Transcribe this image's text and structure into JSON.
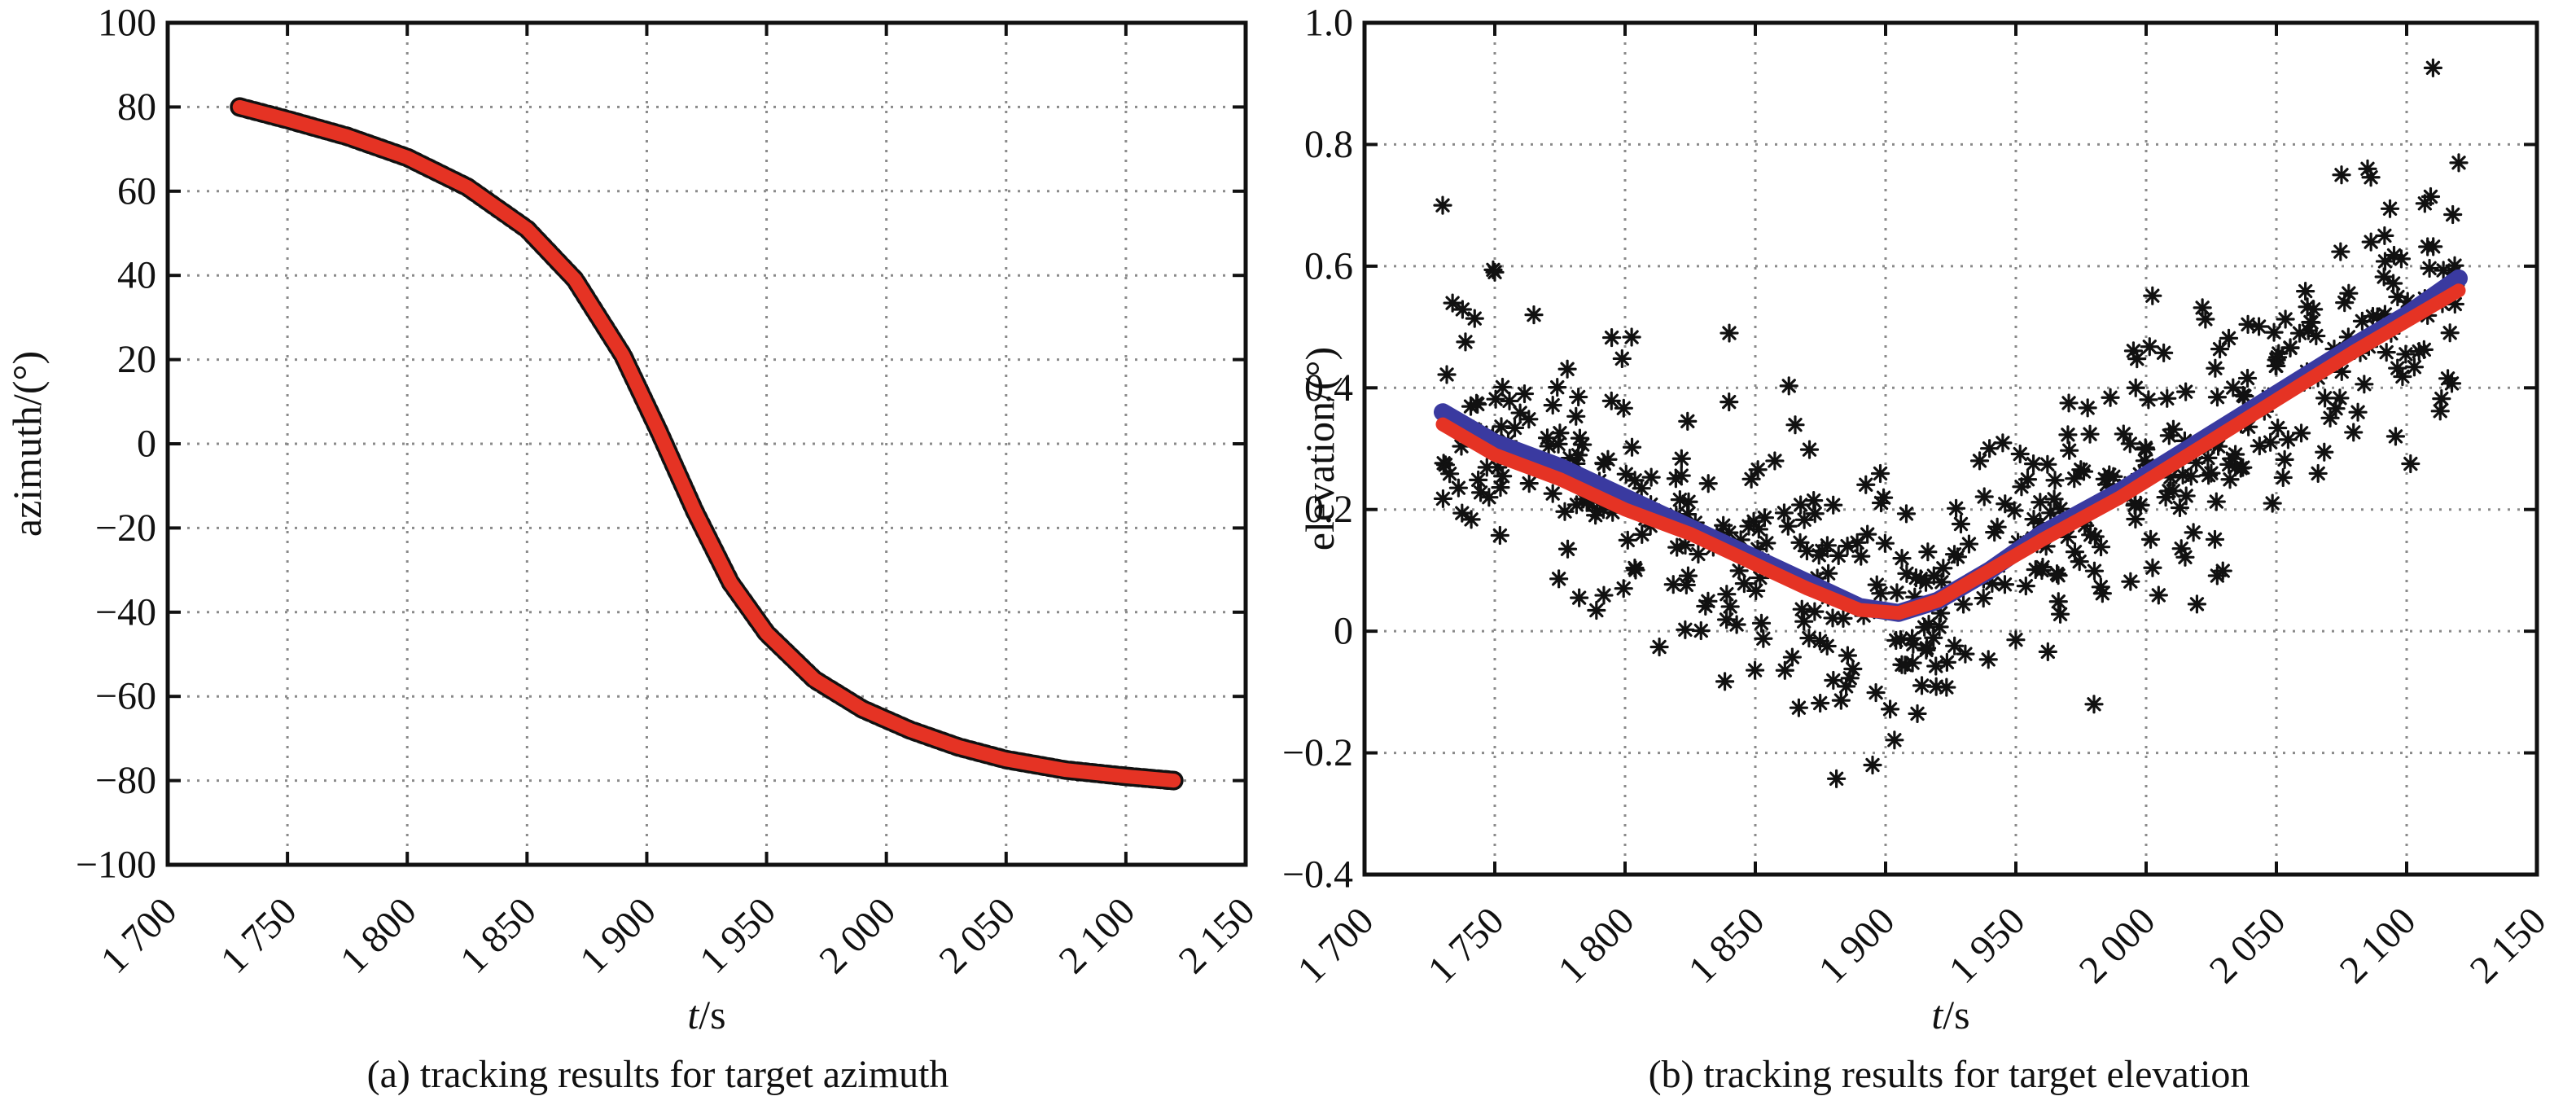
{
  "chart_data": [
    {
      "type": "line",
      "panel": "a",
      "caption": "(a) tracking results for target azimuth",
      "xlabel_italic": "t",
      "xlabel_rest": "/s",
      "ylabel": "azimuth/(°)",
      "xlim": [
        1700,
        2150
      ],
      "ylim": [
        -100,
        100
      ],
      "grid": true,
      "x_ticks": [
        1700,
        1750,
        1800,
        1850,
        1900,
        1950,
        2000,
        2050,
        2100,
        2150
      ],
      "x_tick_labels": [
        "1 700",
        "1 750",
        "1 800",
        "1 850",
        "1 900",
        "1 950",
        "2 000",
        "2 050",
        "2 100",
        "2 150"
      ],
      "y_ticks": [
        -100,
        -80,
        -60,
        -40,
        -20,
        0,
        20,
        40,
        60,
        80,
        100
      ],
      "y_tick_labels": [
        "−100",
        "−80",
        "−60",
        "−40",
        "−20",
        "0",
        "20",
        "40",
        "60",
        "80",
        "100"
      ],
      "series": [
        {
          "style": "measured",
          "color": "#111111",
          "x": [
            1730,
            1750,
            1775,
            1800,
            1825,
            1850,
            1870,
            1890,
            1905,
            1920,
            1935,
            1950,
            1970,
            1990,
            2010,
            2030,
            2050,
            2075,
            2100,
            2120
          ],
          "y": [
            80,
            77,
            73,
            68,
            61,
            51,
            39,
            21,
            3,
            -16,
            -33,
            -45,
            -56,
            -63,
            -68,
            -72,
            -75,
            -77.5,
            -79,
            -80
          ]
        },
        {
          "style": "tracked",
          "color": "#e53324",
          "x": [
            1730,
            1750,
            1775,
            1800,
            1825,
            1850,
            1870,
            1890,
            1905,
            1920,
            1935,
            1950,
            1970,
            1990,
            2010,
            2030,
            2050,
            2075,
            2100,
            2120
          ],
          "y": [
            80,
            77,
            73,
            68,
            61,
            51,
            39,
            21,
            3,
            -16,
            -33,
            -45,
            -56,
            -63,
            -68,
            -72,
            -75,
            -77.5,
            -79,
            -80
          ]
        }
      ]
    },
    {
      "type": "scatter",
      "panel": "b",
      "caption": "(b) tracking results for target elevation",
      "xlabel_italic": "t",
      "xlabel_rest": "/s",
      "ylabel": "elevation/(°)",
      "xlim": [
        1700,
        2150
      ],
      "ylim": [
        -0.4,
        1.0
      ],
      "grid": true,
      "x_ticks": [
        1700,
        1750,
        1800,
        1850,
        1900,
        1950,
        2000,
        2050,
        2100,
        2150
      ],
      "x_tick_labels": [
        "1 700",
        "1 750",
        "1 800",
        "1 850",
        "1 900",
        "1 950",
        "2 000",
        "2 050",
        "2 100",
        "2 150"
      ],
      "y_ticks": [
        -0.4,
        -0.2,
        0,
        0.2,
        0.4,
        0.6,
        0.8,
        1.0
      ],
      "y_tick_labels": [
        "−0.4",
        "−0.2",
        "0",
        "0.2",
        "0.4",
        "0.6",
        "0.8",
        "1.0"
      ],
      "measurements": {
        "marker": "asterisk",
        "color": "#111111",
        "count": 480,
        "t_range": [
          1730,
          2120
        ],
        "noise_sd": 0.1,
        "seed": 7,
        "outliers": [
          {
            "x": 1730,
            "y": 0.7
          },
          {
            "x": 1750,
            "y": 0.59
          },
          {
            "x": 1765,
            "y": 0.52
          },
          {
            "x": 1840,
            "y": 0.49
          },
          {
            "x": 1895,
            "y": -0.22
          },
          {
            "x": 1980,
            "y": -0.12
          },
          {
            "x": 2075,
            "y": 0.75
          },
          {
            "x": 2085,
            "y": 0.76
          },
          {
            "x": 2120,
            "y": 0.77
          }
        ]
      },
      "series": [
        {
          "style": "true",
          "color": "#3a3aa0",
          "x": [
            1730,
            1750,
            1775,
            1800,
            1825,
            1850,
            1870,
            1890,
            1905,
            1920,
            1940,
            1960,
            1990,
            2020,
            2050,
            2080,
            2100,
            2120
          ],
          "y": [
            0.36,
            0.31,
            0.27,
            0.22,
            0.17,
            0.12,
            0.08,
            0.04,
            0.03,
            0.05,
            0.1,
            0.16,
            0.23,
            0.31,
            0.39,
            0.47,
            0.52,
            0.58
          ]
        },
        {
          "style": "tracked",
          "color": "#e53324",
          "x": [
            1730,
            1750,
            1775,
            1800,
            1825,
            1850,
            1870,
            1890,
            1905,
            1920,
            1940,
            1960,
            1990,
            2020,
            2050,
            2080,
            2100,
            2120
          ],
          "y": [
            0.34,
            0.29,
            0.25,
            0.2,
            0.16,
            0.11,
            0.07,
            0.035,
            0.03,
            0.05,
            0.1,
            0.15,
            0.22,
            0.3,
            0.38,
            0.46,
            0.51,
            0.56
          ]
        }
      ]
    }
  ]
}
